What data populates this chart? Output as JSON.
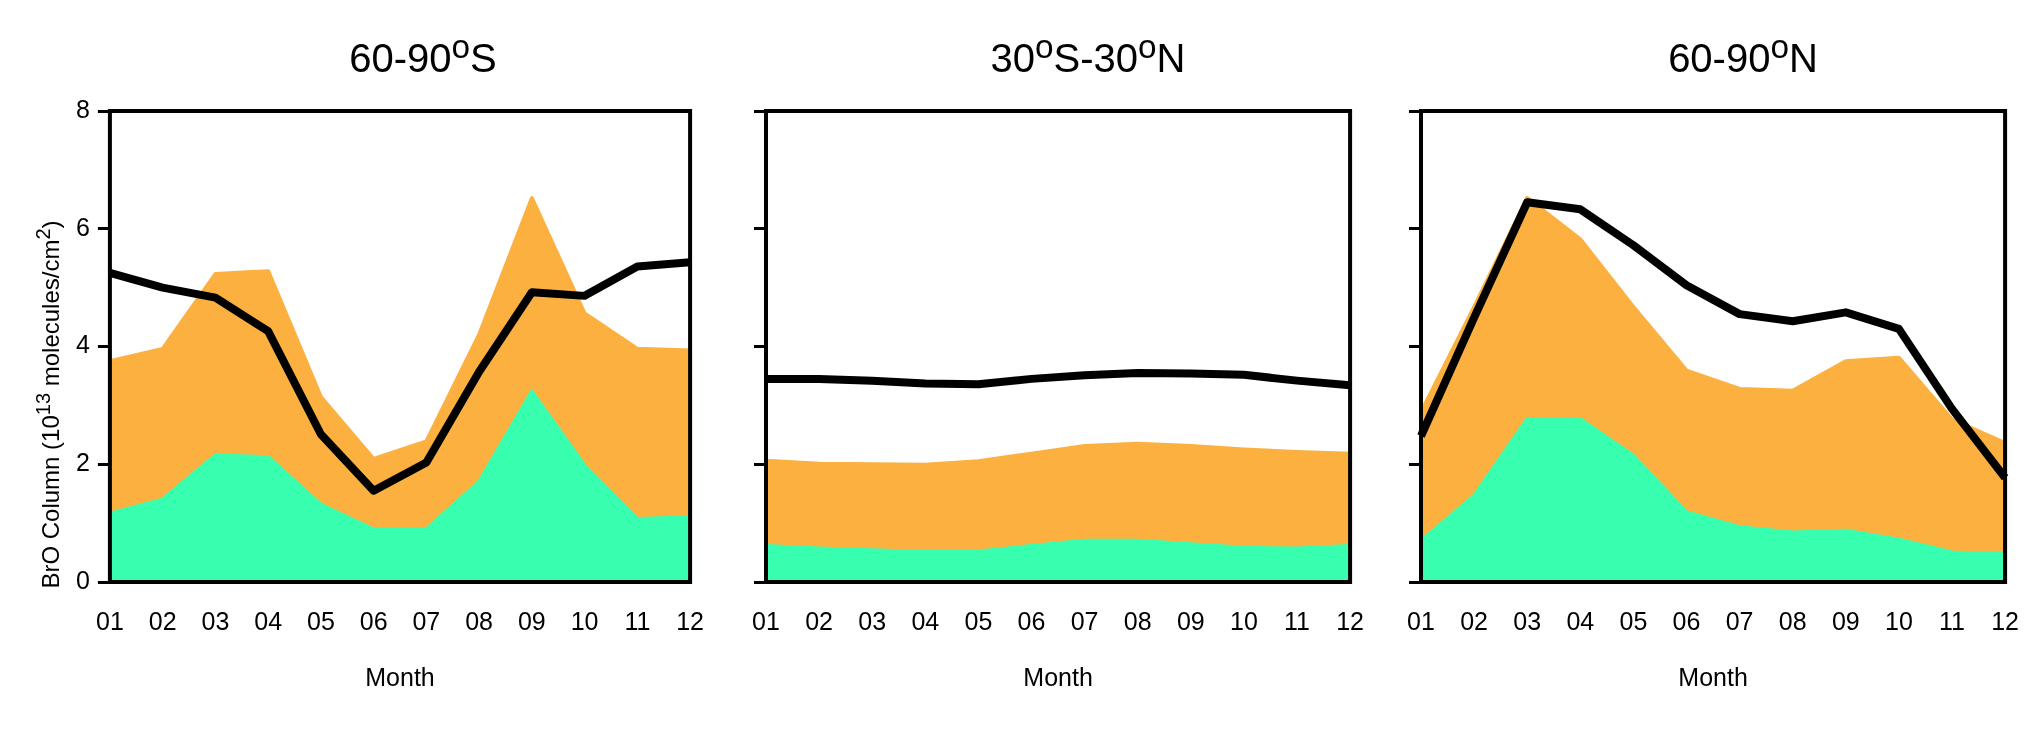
{
  "chart_data": [
    {
      "type": "area",
      "title": "60-90$^{o}$S",
      "xlabel": "Month",
      "ylabel": "BrO Column (10$^{13}$ molecules/cm$^{2}$)",
      "categories": [
        "01",
        "02",
        "03",
        "04",
        "05",
        "06",
        "07",
        "08",
        "09",
        "10",
        "11",
        "12"
      ],
      "ylim": [
        0,
        8
      ],
      "yticks": [
        0,
        2,
        4,
        6,
        8
      ],
      "series": [
        {
          "type": "area",
          "color": "#fbb040",
          "values": [
            3.75,
            3.96,
            5.23,
            5.28,
            3.14,
            2.09,
            2.39,
            4.2,
            6.52,
            4.56,
            3.96,
            3.93
          ]
        },
        {
          "type": "area",
          "color": "#38ffb0",
          "values": [
            1.16,
            1.4,
            2.15,
            2.12,
            1.31,
            0.89,
            0.89,
            1.7,
            3.23,
            1.97,
            1.07,
            1.1
          ]
        },
        {
          "type": "line",
          "color": "#000000",
          "values": [
            5.25,
            5.0,
            4.83,
            4.26,
            2.51,
            1.55,
            2.03,
            3.57,
            4.92,
            4.86,
            5.36,
            5.43
          ]
        }
      ]
    },
    {
      "type": "area",
      "title": "30$^{o}$S-30$^{o}$N",
      "xlabel": "Month",
      "categories": [
        "01",
        "02",
        "03",
        "04",
        "05",
        "06",
        "07",
        "08",
        "09",
        "10",
        "11",
        "12"
      ],
      "ylim": [
        0,
        8
      ],
      "yticks": [
        0,
        2,
        4,
        6,
        8
      ],
      "tick_labels": "x",
      "series": [
        {
          "type": "area",
          "color": "#fbb040",
          "values": [
            2.06,
            2.01,
            2.0,
            1.99,
            2.05,
            2.18,
            2.31,
            2.35,
            2.31,
            2.25,
            2.21,
            2.18
          ]
        },
        {
          "type": "area",
          "color": "#38ffb0",
          "values": [
            0.61,
            0.57,
            0.54,
            0.51,
            0.52,
            0.61,
            0.7,
            0.7,
            0.64,
            0.58,
            0.57,
            0.61
          ]
        },
        {
          "type": "line",
          "color": "#000000",
          "values": [
            3.45,
            3.45,
            3.42,
            3.37,
            3.36,
            3.45,
            3.51,
            3.55,
            3.54,
            3.52,
            3.42,
            3.34
          ]
        }
      ]
    },
    {
      "type": "area",
      "title": "60-90$^{o}$N",
      "xlabel": "Month",
      "categories": [
        "01",
        "02",
        "03",
        "04",
        "05",
        "06",
        "07",
        "08",
        "09",
        "10",
        "11",
        "12"
      ],
      "ylim": [
        0,
        8
      ],
      "yticks": [
        0,
        2,
        4,
        6,
        8
      ],
      "tick_labels": "x",
      "series": [
        {
          "type": "area",
          "color": "#fbb040",
          "values": [
            2.88,
            4.67,
            6.52,
            5.82,
            4.67,
            3.59,
            3.28,
            3.25,
            3.75,
            3.81,
            2.76,
            2.36
          ]
        },
        {
          "type": "area",
          "color": "#38ffb0",
          "values": [
            0.69,
            1.46,
            2.76,
            2.76,
            2.14,
            1.18,
            0.93,
            0.84,
            0.87,
            0.72,
            0.5,
            0.47
          ]
        },
        {
          "type": "line",
          "color": "#000000",
          "values": [
            2.48,
            4.49,
            6.45,
            6.33,
            5.72,
            5.04,
            4.55,
            4.43,
            4.58,
            4.3,
            2.94,
            1.77
          ]
        }
      ]
    }
  ]
}
